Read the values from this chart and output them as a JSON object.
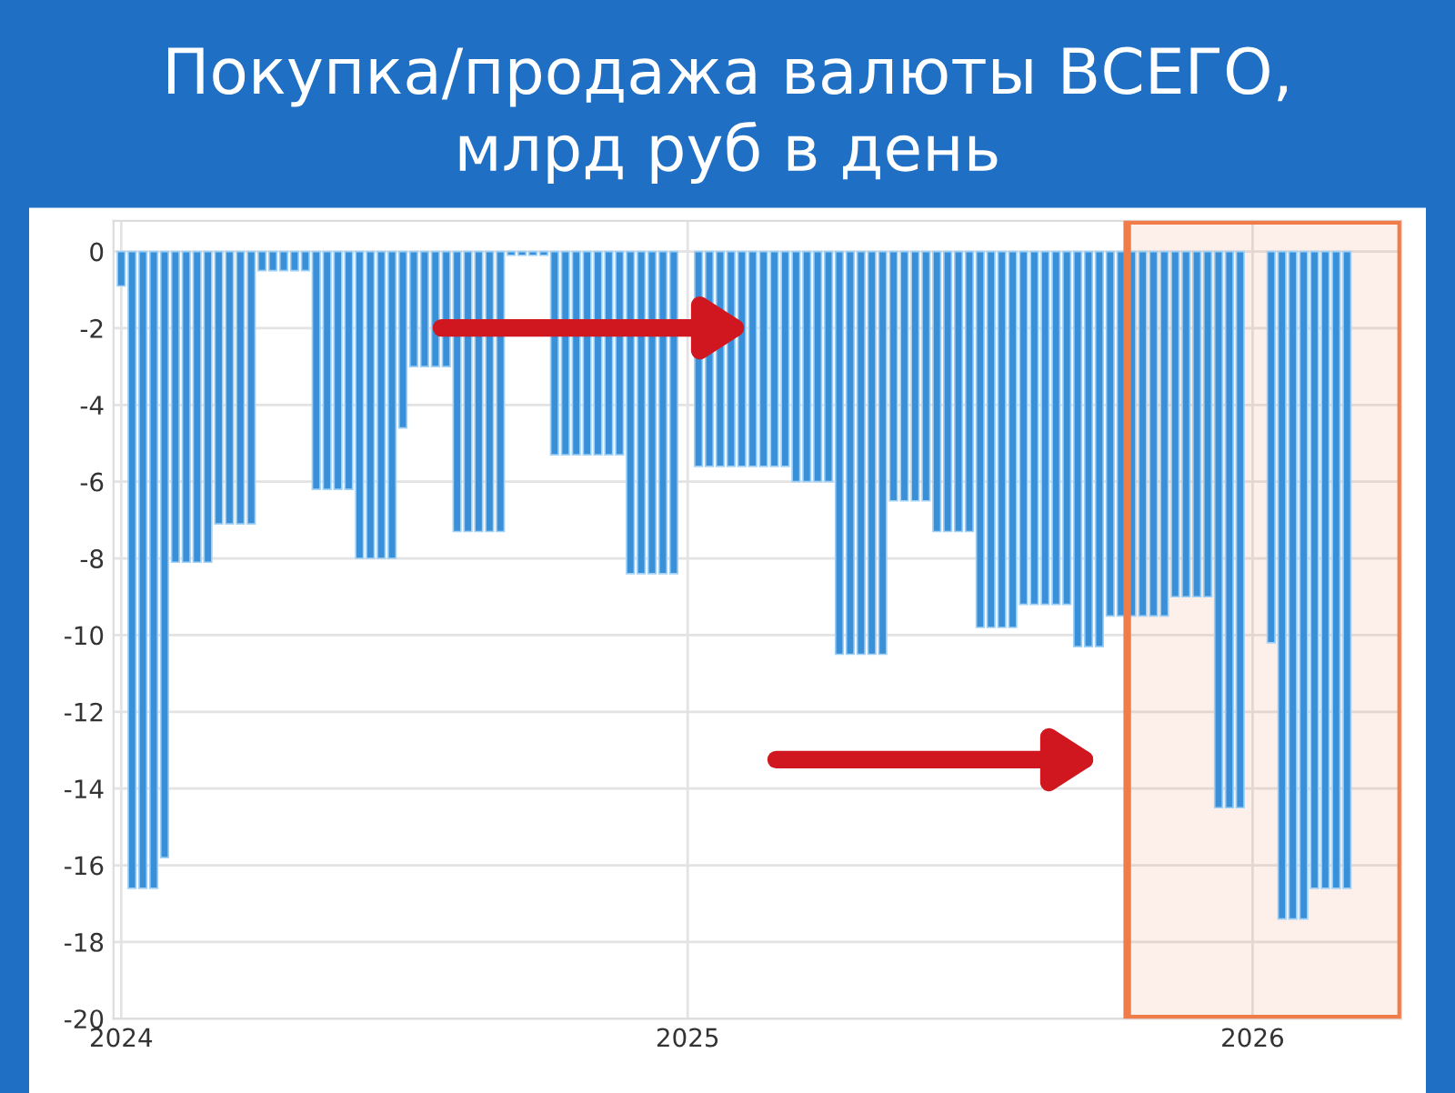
{
  "chart_data": {
    "type": "bar",
    "title": "Покупка/продажа валюты ВСЕГО,\nмлрд руб в день",
    "x": [
      "2024-01-01",
      "2024-01-08",
      "2024-01-15",
      "2024-01-22",
      "2024-01-29",
      "2024-02-05",
      "2024-02-12",
      "2024-02-19",
      "2024-02-26",
      "2024-03-04",
      "2024-03-11",
      "2024-03-18",
      "2024-03-25",
      "2024-04-01",
      "2024-04-08",
      "2024-04-15",
      "2024-04-22",
      "2024-04-29",
      "2024-05-06",
      "2024-05-13",
      "2024-05-20",
      "2024-05-27",
      "2024-06-03",
      "2024-06-10",
      "2024-06-17",
      "2024-06-24",
      "2024-07-01",
      "2024-07-08",
      "2024-07-15",
      "2024-07-22",
      "2024-07-29",
      "2024-08-05",
      "2024-08-12",
      "2024-08-19",
      "2024-08-26",
      "2024-09-02",
      "2024-09-09",
      "2024-09-16",
      "2024-09-23",
      "2024-09-30",
      "2024-10-07",
      "2024-10-14",
      "2024-10-21",
      "2024-10-28",
      "2024-11-04",
      "2024-11-11",
      "2024-11-18",
      "2024-11-25",
      "2024-12-02",
      "2024-12-09",
      "2024-12-16",
      "2024-12-23",
      "2025-01-08",
      "2025-01-15",
      "2025-01-22",
      "2025-01-29",
      "2025-02-05",
      "2025-02-12",
      "2025-02-19",
      "2025-02-26",
      "2025-03-05",
      "2025-03-12",
      "2025-03-19",
      "2025-03-26",
      "2025-04-02",
      "2025-04-09",
      "2025-04-16",
      "2025-04-23",
      "2025-04-30",
      "2025-05-07",
      "2025-05-14",
      "2025-05-21",
      "2025-05-28",
      "2025-06-04",
      "2025-06-11",
      "2025-06-18",
      "2025-06-25",
      "2025-07-02",
      "2025-07-09",
      "2025-07-16",
      "2025-07-23",
      "2025-07-30",
      "2025-08-06",
      "2025-08-13",
      "2025-08-20",
      "2025-08-27",
      "2025-09-03",
      "2025-09-10",
      "2025-09-17",
      "2025-09-24",
      "2025-10-01",
      "2025-10-08",
      "2025-10-15",
      "2025-10-22",
      "2025-10-29",
      "2025-11-05",
      "2025-11-12",
      "2025-11-19",
      "2025-11-26",
      "2025-12-03",
      "2025-12-10",
      "2025-12-17",
      "2025-12-24",
      "2026-01-13",
      "2026-01-20",
      "2026-01-27",
      "2026-02-03",
      "2026-02-10",
      "2026-02-17",
      "2026-02-24",
      "2026-03-03"
    ],
    "values": [
      -0.9,
      -16.6,
      -16.6,
      -16.6,
      -15.8,
      -8.1,
      -8.1,
      -8.1,
      -8.1,
      -7.1,
      -7.1,
      -7.1,
      -7.1,
      -0.5,
      -0.5,
      -0.5,
      -0.5,
      -0.5,
      -6.2,
      -6.2,
      -6.2,
      -6.2,
      -8.0,
      -8.0,
      -8.0,
      -8.0,
      -4.6,
      -3.0,
      -3.0,
      -3.0,
      -3.0,
      -7.3,
      -7.3,
      -7.3,
      -7.3,
      -7.3,
      -0.1,
      -0.1,
      -0.1,
      -0.1,
      -5.3,
      -5.3,
      -5.3,
      -5.3,
      -5.3,
      -5.3,
      -5.3,
      -8.4,
      -8.4,
      -8.4,
      -8.4,
      -8.4,
      -5.6,
      -5.6,
      -5.6,
      -5.6,
      -5.6,
      -5.6,
      -5.6,
      -5.6,
      -5.6,
      -6.0,
      -6.0,
      -6.0,
      -6.0,
      -10.5,
      -10.5,
      -10.5,
      -10.5,
      -10.5,
      -6.5,
      -6.5,
      -6.5,
      -6.5,
      -7.3,
      -7.3,
      -7.3,
      -7.3,
      -9.8,
      -9.8,
      -9.8,
      -9.8,
      -9.2,
      -9.2,
      -9.2,
      -9.2,
      -9.2,
      -10.3,
      -10.3,
      -10.3,
      -9.5,
      -9.5,
      -9.5,
      -9.5,
      -9.5,
      -9.5,
      -9.0,
      -9.0,
      -9.0,
      -9.0,
      -14.5,
      -14.5,
      -14.5,
      -10.2,
      -17.4,
      -17.4,
      -17.4,
      -16.6,
      -16.6,
      -16.6,
      -16.6
    ],
    "color": "#3a8fd9",
    "xlim": [
      "2023-12-27",
      "2026-04-07"
    ],
    "xticks": [
      {
        "value": "2024-01-01",
        "label": "2024"
      },
      {
        "value": "2025-01-01",
        "label": "2025"
      },
      {
        "value": "2026-01-01",
        "label": "2026"
      }
    ],
    "ylim": [
      -20,
      0.8
    ],
    "yticks": [
      0,
      -2,
      -4,
      -6,
      -8,
      -10,
      -12,
      -14,
      -16,
      -18,
      -20
    ],
    "grid": true,
    "bands": [
      {
        "axis": "x",
        "from": "2025-10-12",
        "to": "2026-04-07",
        "color": "#f07c4a"
      }
    ]
  }
}
